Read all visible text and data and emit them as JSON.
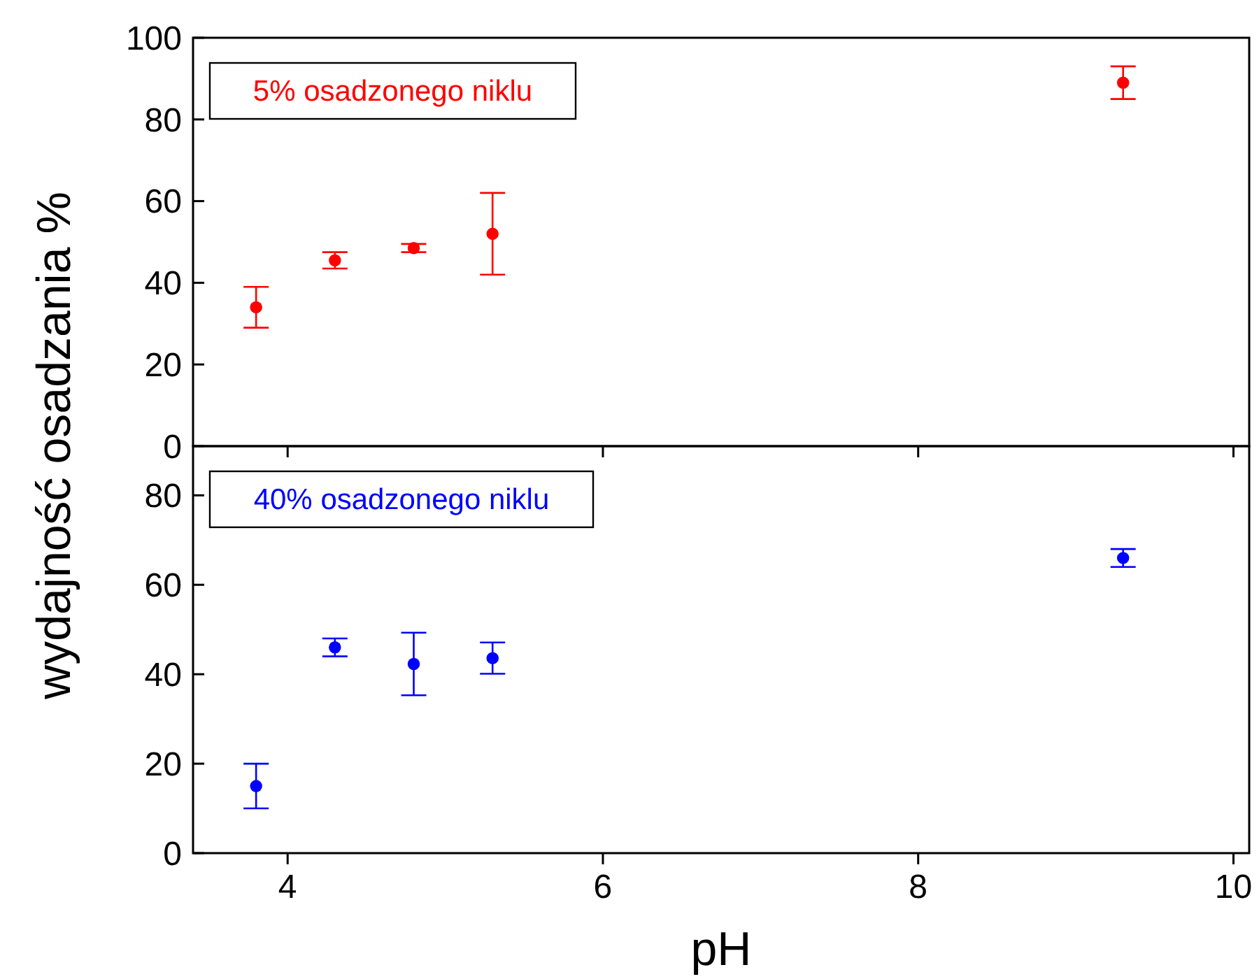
{
  "chart_data": [
    {
      "type": "scatter",
      "ylabel": "wydajność osadzania %",
      "x": [
        3.8,
        4.3,
        4.8,
        5.3,
        9.3
      ],
      "series": [
        {
          "name": "5% osadzonego niklu",
          "color": "#ff0000",
          "values": [
            34,
            45.5,
            48.5,
            52,
            89
          ],
          "errors": [
            5,
            2,
            1,
            10,
            4
          ]
        }
      ],
      "xlim": [
        3.4,
        10.1
      ],
      "xticks": [
        4,
        6,
        8,
        10
      ],
      "ylim": [
        0,
        100
      ],
      "yticks": [
        0,
        20,
        40,
        60,
        80,
        100
      ],
      "tick_labels": "y",
      "marker": "circle",
      "legend": "top left",
      "grid": false
    },
    {
      "type": "scatter",
      "xlabel": "pH",
      "x": [
        3.8,
        4.3,
        4.8,
        5.3,
        9.3
      ],
      "series": [
        {
          "name": "40% osadzonego niklu",
          "color": "#0000ff",
          "values": [
            15,
            46,
            42.3,
            43.6,
            66
          ],
          "errors": [
            5,
            2,
            7,
            3.5,
            2
          ]
        }
      ],
      "xlim": [
        3.4,
        10.1
      ],
      "xticks": [
        4,
        6,
        8,
        10
      ],
      "ylim": [
        0,
        91
      ],
      "yticks": [
        0,
        20,
        40,
        60,
        80
      ],
      "marker": "circle",
      "legend": "top left",
      "grid": false
    }
  ]
}
